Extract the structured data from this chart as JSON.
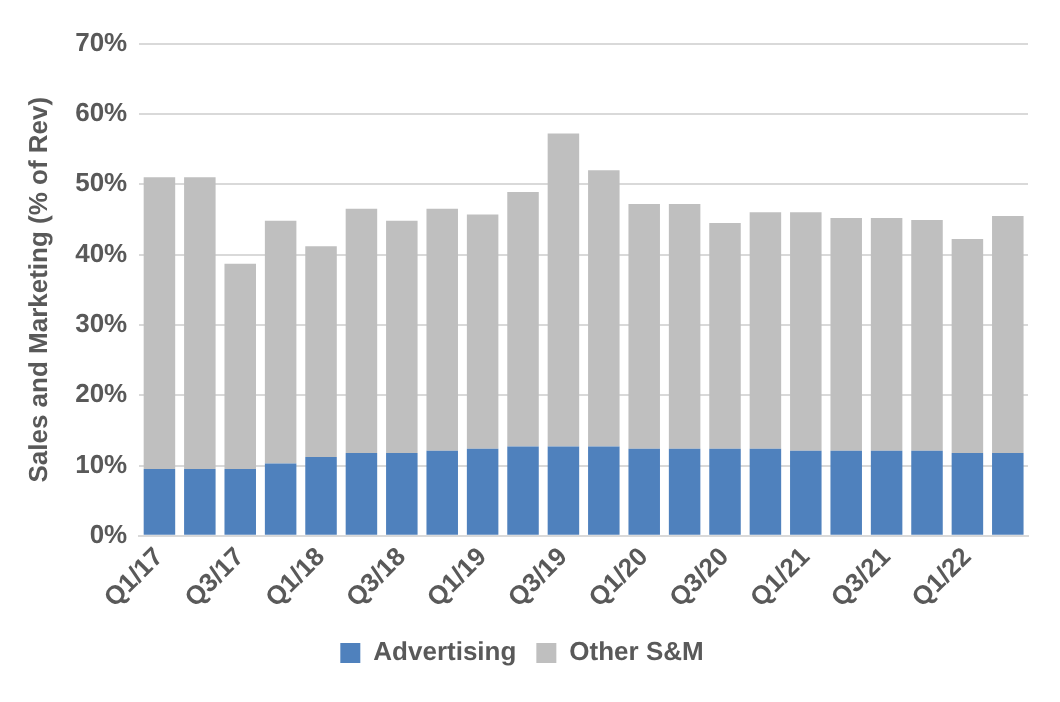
{
  "chart_data": {
    "type": "bar",
    "stacked": true,
    "ylabel": "Sales and Marketing (% of Rev)",
    "categories": [
      "Q1/17",
      null,
      "Q3/17",
      null,
      "Q1/18",
      null,
      "Q3/18",
      null,
      "Q1/19",
      null,
      "Q3/19",
      null,
      "Q1/20",
      null,
      "Q3/20",
      null,
      "Q1/21",
      null,
      "Q3/21",
      null,
      "Q1/22",
      null
    ],
    "series": [
      {
        "name": "Advertising",
        "color": "#4f81bd",
        "values": [
          9.5,
          9.5,
          9.5,
          10.3,
          11.2,
          11.8,
          11.8,
          12.1,
          12.4,
          12.7,
          12.7,
          12.7,
          12.4,
          12.4,
          12.4,
          12.4,
          12.1,
          12.1,
          12.1,
          12.1,
          11.8,
          11.8
        ]
      },
      {
        "name": "Other S&M",
        "color": "#bfbfbf",
        "values": [
          41.5,
          41.5,
          29.2,
          34.5,
          30,
          34.7,
          33,
          34.4,
          33.3,
          36.2,
          44.5,
          39.3,
          34.8,
          34.8,
          32.1,
          33.6,
          33.9,
          33.1,
          33.1,
          32.8,
          30.4,
          33.7
        ]
      }
    ],
    "ylim": [
      0,
      70
    ],
    "yticks": [
      {
        "value": 0,
        "label": "0%"
      },
      {
        "value": 10,
        "label": "10%"
      },
      {
        "value": 20,
        "label": "20%"
      },
      {
        "value": 30,
        "label": "30%"
      },
      {
        "value": 40,
        "label": "40%"
      },
      {
        "value": 50,
        "label": "50%"
      },
      {
        "value": 60,
        "label": "60%"
      },
      {
        "value": 70,
        "label": "70%"
      }
    ],
    "grid": "y",
    "legend": "bottom"
  }
}
